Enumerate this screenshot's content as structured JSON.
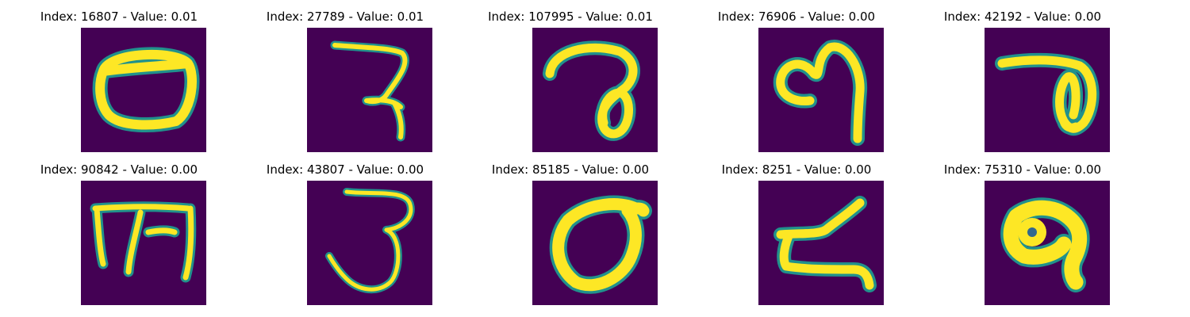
{
  "panels": [
    {
      "title": "Index: 16807 - Value: 0.01"
    },
    {
      "title": "Index: 27789 - Value: 0.01"
    },
    {
      "title": "Index: 107995 - Value: 0.01"
    },
    {
      "title": "Index: 76906 - Value: 0.00"
    },
    {
      "title": "Index: 42192 - Value: 0.00"
    },
    {
      "title": "Index: 90842 - Value: 0.00"
    },
    {
      "title": "Index: 43807 - Value: 0.00"
    },
    {
      "title": "Index: 85185 - Value: 0.00"
    },
    {
      "title": "Index: 8251 - Value: 0.00"
    },
    {
      "title": "Index: 75310 - Value: 0.00"
    }
  ],
  "colors": {
    "background": "#440154",
    "stroke": "#fde725",
    "edge": "#21918c"
  }
}
